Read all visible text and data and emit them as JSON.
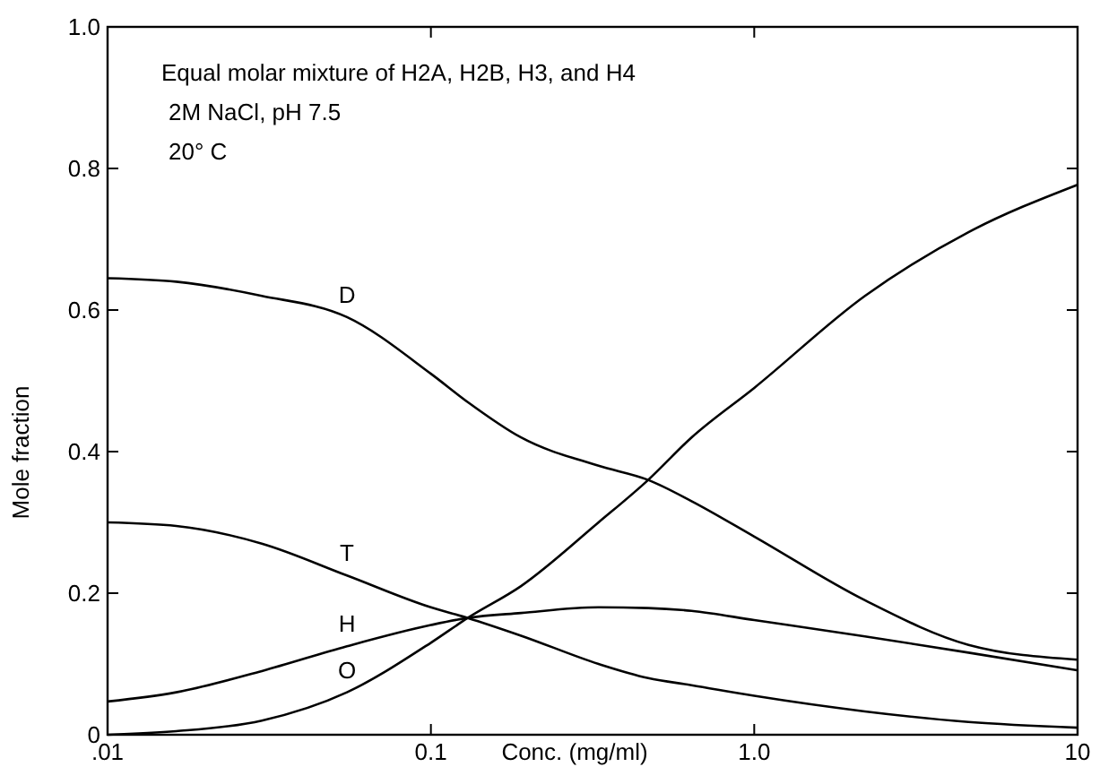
{
  "chart_data": {
    "type": "line",
    "xlabel": "Conc. (mg/ml)",
    "ylabel": "Mole fraction",
    "log": "x",
    "x": [
      0.01,
      0.0163,
      0.03,
      0.055,
      0.1,
      0.13,
      0.19,
      0.33,
      0.47,
      0.64,
      1,
      2.2,
      4.6,
      10
    ],
    "series": [
      {
        "name": "D",
        "color": "#000000",
        "values": [
          0.645,
          0.64,
          0.62,
          0.59,
          0.51,
          0.47,
          0.42,
          0.38,
          0.36,
          0.33,
          0.28,
          0.19,
          0.127,
          0.106
        ]
      },
      {
        "name": "T",
        "color": "#000000",
        "values": [
          0.3,
          0.295,
          0.27,
          0.225,
          0.18,
          0.165,
          0.14,
          0.1,
          0.08,
          0.07,
          0.055,
          0.033,
          0.018,
          0.01
        ]
      },
      {
        "name": "H",
        "color": "#000000",
        "values": [
          0.047,
          0.06,
          0.09,
          0.125,
          0.155,
          0.165,
          0.172,
          0.18,
          0.179,
          0.175,
          0.162,
          0.139,
          0.116,
          0.091
        ]
      },
      {
        "name": "O",
        "color": "#000000",
        "values": [
          0,
          0.005,
          0.02,
          0.06,
          0.13,
          0.165,
          0.21,
          0.3,
          0.36,
          0.42,
          0.49,
          0.62,
          0.71,
          0.777
        ]
      }
    ],
    "xlim": [
      0.01,
      10
    ],
    "xticks": [
      {
        "value": 0.01,
        "label": ".01"
      },
      {
        "value": 0.1,
        "label": "0.1"
      },
      {
        "value": 1,
        "label": "1.0"
      },
      10
    ],
    "ylim": [
      0,
      1
    ],
    "yticks": [
      0,
      0.2,
      0.4,
      0.6,
      0.8,
      {
        "value": 1,
        "label": "1.0"
      }
    ],
    "grid": false,
    "marker": "none",
    "line_style": "solid",
    "annotations": [
      "Equal molar mixture of H2A, H2B, H3, and H4",
      "2M NaCl, pH 7.5",
      "20° C"
    ]
  }
}
